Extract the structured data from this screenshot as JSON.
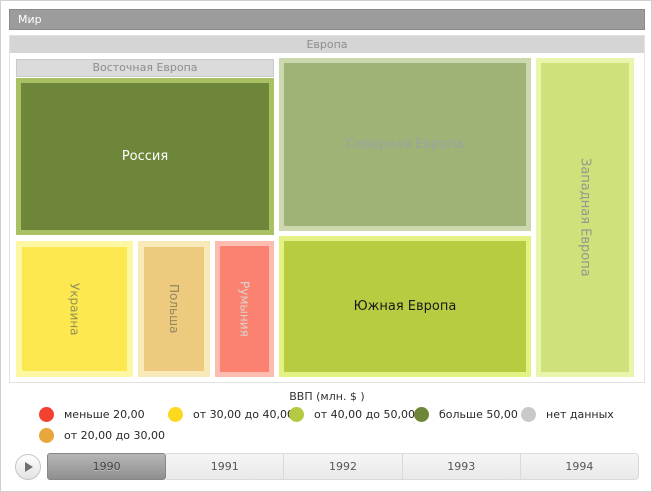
{
  "breadcrumb": {
    "label": "Мир"
  },
  "chart_data": {
    "type": "treemap",
    "title": "ВВП (млн. $ )",
    "root": "Мир",
    "tree": {
      "name": "Европа",
      "children": [
        {
          "name": "Восточная Европа",
          "children": [
            {
              "name": "Россия",
              "fill": "#6e8639",
              "legend_bin": "больше 50,00"
            },
            {
              "name": "Украина",
              "fill": "#fde94f",
              "legend_bin": "от 30,00 до 40,00"
            },
            {
              "name": "Польша",
              "fill": "#edca7e",
              "legend_bin": "от 20,00 до 30,00"
            },
            {
              "name": "Румыния",
              "fill": "#fb8270",
              "legend_bin": "меньше 20,00"
            }
          ]
        },
        {
          "name": "Северная Европа",
          "fill": "#9fb376",
          "legend_bin": "от 40,00 до 50,00"
        },
        {
          "name": "Южная Европа",
          "fill": "#b9cc41",
          "legend_bin": "от 40,00 до 50,00"
        },
        {
          "name": "Западная Европа",
          "fill": "#cfe17b",
          "legend_bin": "от 40,00 до 50,00"
        }
      ]
    },
    "legend_position": "bottom",
    "layout_note": "drillable treemap with year timeline"
  },
  "legend": {
    "title": "ВВП (млн. $ )",
    "items": [
      {
        "label": "меньше 20,00",
        "color": "#f24130"
      },
      {
        "label": "от 20,00 до 30,00",
        "color": "#e9a63c"
      },
      {
        "label": "от 30,00 до 40,00",
        "color": "#fdd820"
      },
      {
        "label": "от 40,00 до 50,00",
        "color": "#b5c943"
      },
      {
        "label": "больше 50,00",
        "color": "#6d8637"
      },
      {
        "label": "нет данных",
        "color": "#c9c9c9"
      }
    ]
  },
  "timeline": {
    "play_icon": "play-triangle",
    "years": [
      "1990",
      "1991",
      "1992",
      "1993",
      "1994"
    ],
    "selected": "1990"
  }
}
